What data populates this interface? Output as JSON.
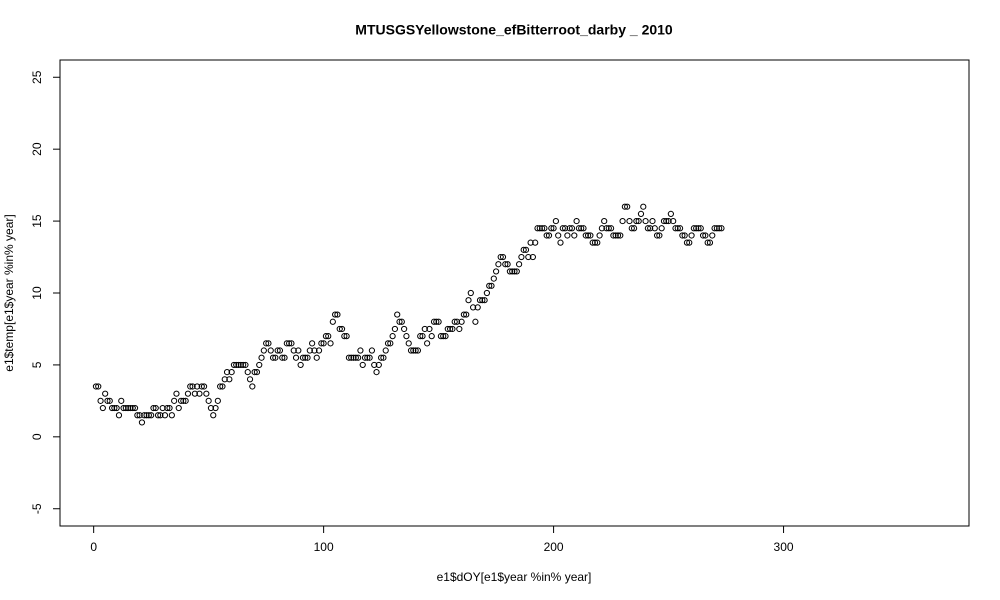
{
  "chart_data": {
    "type": "scatter",
    "title": "MTUSGSYellowstone_efBitterroot_darby _ 2010",
    "xlabel": "e1$dOY[e1$year %in% year]",
    "ylabel": "e1$temp[e1$year %in% year]",
    "xlim": [
      -14.64,
      380.64
    ],
    "ylim": [
      -6.2,
      26.2
    ],
    "xticks": [
      0,
      100,
      200,
      300
    ],
    "yticks": [
      -5,
      0,
      5,
      10,
      15,
      20,
      25
    ],
    "color": "#000000",
    "grid": false,
    "x": [
      1,
      2,
      3,
      4,
      5,
      6,
      7,
      8,
      9,
      10,
      11,
      12,
      13,
      14,
      15,
      16,
      17,
      18,
      19,
      20,
      21,
      22,
      23,
      24,
      25,
      26,
      27,
      28,
      29,
      30,
      31,
      32,
      33,
      34,
      35,
      36,
      37,
      38,
      39,
      40,
      41,
      42,
      43,
      44,
      45,
      46,
      47,
      48,
      49,
      50,
      51,
      52,
      53,
      54,
      55,
      56,
      57,
      58,
      59,
      60,
      61,
      62,
      63,
      64,
      65,
      66,
      67,
      68,
      69,
      70,
      71,
      72,
      73,
      74,
      75,
      76,
      77,
      78,
      79,
      80,
      81,
      82,
      83,
      84,
      85,
      86,
      87,
      88,
      89,
      90,
      91,
      92,
      93,
      94,
      95,
      96,
      97,
      98,
      99,
      100,
      101,
      102,
      103,
      104,
      105,
      106,
      107,
      108,
      109,
      110,
      111,
      112,
      113,
      114,
      115,
      116,
      117,
      118,
      119,
      120,
      121,
      122,
      123,
      124,
      125,
      126,
      127,
      128,
      129,
      130,
      131,
      132,
      133,
      134,
      135,
      136,
      137,
      138,
      139,
      140,
      141,
      142,
      143,
      144,
      145,
      146,
      147,
      148,
      149,
      150,
      151,
      152,
      153,
      154,
      155,
      156,
      157,
      158,
      159,
      160,
      161,
      162,
      163,
      164,
      165,
      166,
      167,
      168,
      169,
      170,
      171,
      172,
      173,
      174,
      175,
      176,
      177,
      178,
      179,
      180,
      181,
      182,
      183,
      184,
      185,
      186,
      187,
      188,
      189,
      190,
      191,
      192,
      193,
      194,
      195,
      196,
      197,
      198,
      199,
      200,
      201,
      202,
      203,
      204,
      205,
      206,
      207,
      208,
      209,
      210,
      211,
      212,
      213,
      214,
      215,
      216,
      217,
      218,
      219,
      220,
      221,
      222,
      223,
      224,
      225,
      226,
      227,
      228,
      229,
      230,
      231,
      232,
      233,
      234,
      235,
      236,
      237,
      238,
      239,
      240,
      241,
      242,
      243,
      244,
      245,
      246,
      247,
      248,
      249,
      250,
      251,
      252,
      253,
      254,
      255,
      256,
      257,
      258,
      259,
      260,
      261,
      262,
      263,
      264,
      265,
      266,
      267,
      268,
      269,
      270,
      271,
      272,
      273
    ],
    "values": [
      3.5,
      3.5,
      2.5,
      2,
      3,
      2.5,
      2.5,
      2,
      2,
      2,
      1.5,
      2.5,
      2,
      2,
      2,
      2,
      2,
      2,
      1.5,
      1.5,
      1,
      1.5,
      1.5,
      1.5,
      1.5,
      2,
      2,
      1.5,
      1.5,
      2,
      1.5,
      2,
      2,
      1.5,
      2.5,
      3,
      2,
      2.5,
      2.5,
      2.5,
      3,
      3.5,
      3.5,
      3,
      3.5,
      3,
      3.5,
      3.5,
      3,
      2.5,
      2,
      1.5,
      2,
      2.5,
      3.5,
      3.5,
      4,
      4.5,
      4,
      4.5,
      5,
      5,
      5,
      5,
      5,
      5,
      4.5,
      4,
      3.5,
      4.5,
      4.5,
      5,
      5.5,
      6,
      6.5,
      6.5,
      6,
      5.5,
      5.5,
      6,
      6,
      5.5,
      5.5,
      6.5,
      6.5,
      6.5,
      6,
      5.5,
      6,
      5,
      5.5,
      5.5,
      5.5,
      6,
      6.5,
      6,
      5.5,
      6,
      6.5,
      6.5,
      7,
      7,
      6.5,
      8,
      8.5,
      8.5,
      7.5,
      7.5,
      7,
      7,
      5.5,
      5.5,
      5.5,
      5.5,
      5.5,
      6,
      5,
      5.5,
      5.5,
      5.5,
      6,
      5,
      4.5,
      5,
      5.5,
      5.5,
      6,
      6.5,
      6.5,
      7,
      7.5,
      8.5,
      8,
      8,
      7.5,
      7,
      6.5,
      6,
      6,
      6,
      6,
      7,
      7,
      7.5,
      6.5,
      7.5,
      7,
      8,
      8,
      8,
      7,
      7,
      7,
      7.5,
      7.5,
      7.5,
      8,
      8,
      7.5,
      8,
      8.5,
      8.5,
      9.5,
      10,
      9,
      8,
      9,
      9.5,
      9.5,
      9.5,
      10,
      10.5,
      10.5,
      11,
      11.5,
      12,
      12.5,
      12.5,
      12,
      12,
      11.5,
      11.5,
      11.5,
      11.5,
      12,
      12.5,
      13,
      13,
      12.5,
      13.5,
      12.5,
      13.5,
      14.5,
      14.5,
      14.5,
      14.5,
      14,
      14,
      14.5,
      14.5,
      15,
      14,
      13.5,
      14.5,
      14.5,
      14,
      14.5,
      14.5,
      14,
      15,
      14.5,
      14.5,
      14.5,
      14,
      14,
      14,
      13.5,
      13.5,
      13.5,
      14,
      14.5,
      15,
      14.5,
      14.5,
      14.5,
      14,
      14,
      14,
      14,
      15,
      16,
      16,
      15,
      14.5,
      14.5,
      15,
      15,
      15.5,
      16,
      15,
      14.5,
      14.5,
      15,
      14.5,
      14,
      14,
      14.5,
      15,
      15,
      15,
      15.5,
      15,
      14.5,
      14.5,
      14.5,
      14,
      14,
      13.5,
      13.5,
      14,
      14.5,
      14.5,
      14.5,
      14.5,
      14,
      14,
      13.5,
      13.5,
      14,
      14.5,
      14.5,
      14.5,
      14.5
    ]
  }
}
